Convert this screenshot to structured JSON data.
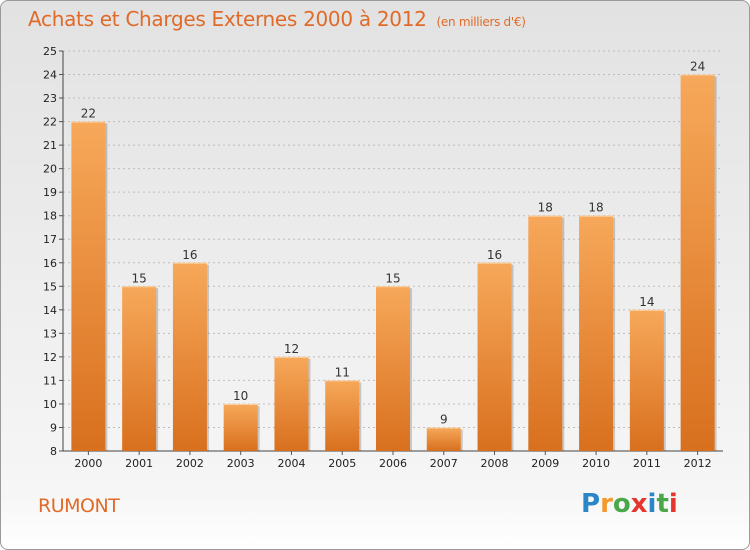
{
  "title": "Achats et Charges Externes 2000 à 2012",
  "unit": "(en milliers d'€)",
  "city": "RUMONT",
  "logo": {
    "letters": [
      "P",
      "r",
      "o",
      "x",
      "i",
      "t",
      "i"
    ],
    "colors": [
      "#2a86c8",
      "#f29a2e",
      "#4aa84a",
      "#e6372f",
      "#2a86c8",
      "#4aa84a",
      "#e6372f"
    ]
  },
  "colors": {
    "accent": "#e06a28",
    "bar_top": "#f7a85a",
    "bar_bottom": "#d8701e"
  },
  "chart_data": {
    "type": "bar",
    "categories": [
      "2000",
      "2001",
      "2002",
      "2003",
      "2004",
      "2005",
      "2006",
      "2007",
      "2008",
      "2009",
      "2010",
      "2011",
      "2012"
    ],
    "values": [
      22,
      15,
      16,
      10,
      12,
      11,
      15,
      9,
      16,
      18,
      18,
      14,
      24
    ],
    "ylim": [
      8,
      25
    ],
    "yticks": [
      8,
      9,
      10,
      11,
      12,
      13,
      14,
      15,
      16,
      17,
      18,
      19,
      20,
      21,
      22,
      23,
      24,
      25
    ],
    "grid": true
  }
}
